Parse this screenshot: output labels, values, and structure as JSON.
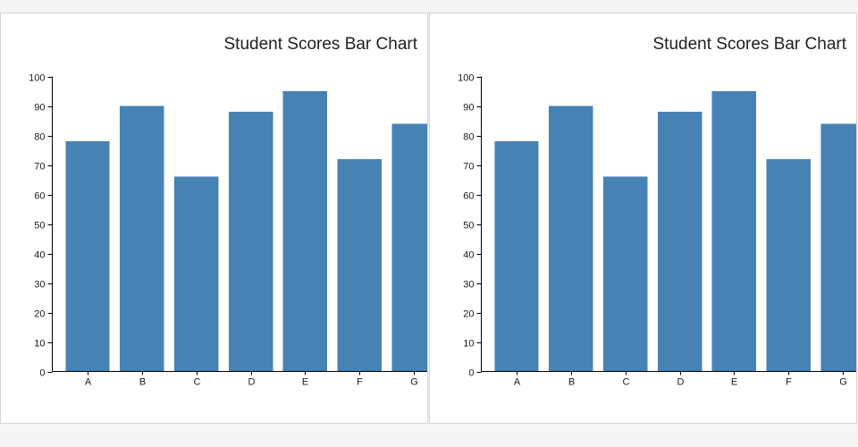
{
  "page": {
    "background": "#f5f5f6",
    "card_background": "#ffffff",
    "card_border": "#d4d4d4",
    "axis_color": "#000000",
    "label_color": "#1a1a1a",
    "title_color": "#1f1f1f"
  },
  "chart_data": [
    {
      "type": "bar",
      "title": "Student Scores Bar Chart",
      "categories": [
        "A",
        "B",
        "C",
        "D",
        "E",
        "F",
        "G"
      ],
      "values": [
        78,
        90,
        66,
        88,
        95,
        72,
        84
      ],
      "xlabel": "",
      "ylabel": "",
      "ylim": [
        0,
        100
      ],
      "ytick_step": 10,
      "yticks": [
        0,
        10,
        20,
        30,
        40,
        50,
        60,
        70,
        80,
        90,
        100
      ],
      "grid": false,
      "legend": false,
      "bar_color": "#4682b4",
      "title_anchor": "end"
    },
    {
      "type": "bar",
      "title": "Student Scores Bar Chart",
      "categories": [
        "A",
        "B",
        "C",
        "D",
        "E",
        "F",
        "G"
      ],
      "values": [
        78,
        90,
        66,
        88,
        95,
        72,
        84
      ],
      "xlabel": "",
      "ylabel": "",
      "ylim": [
        0,
        100
      ],
      "ytick_step": 10,
      "yticks": [
        0,
        10,
        20,
        30,
        40,
        50,
        60,
        70,
        80,
        90,
        100
      ],
      "grid": false,
      "legend": false,
      "bar_color": "#4682b4",
      "title_anchor": "end"
    }
  ]
}
